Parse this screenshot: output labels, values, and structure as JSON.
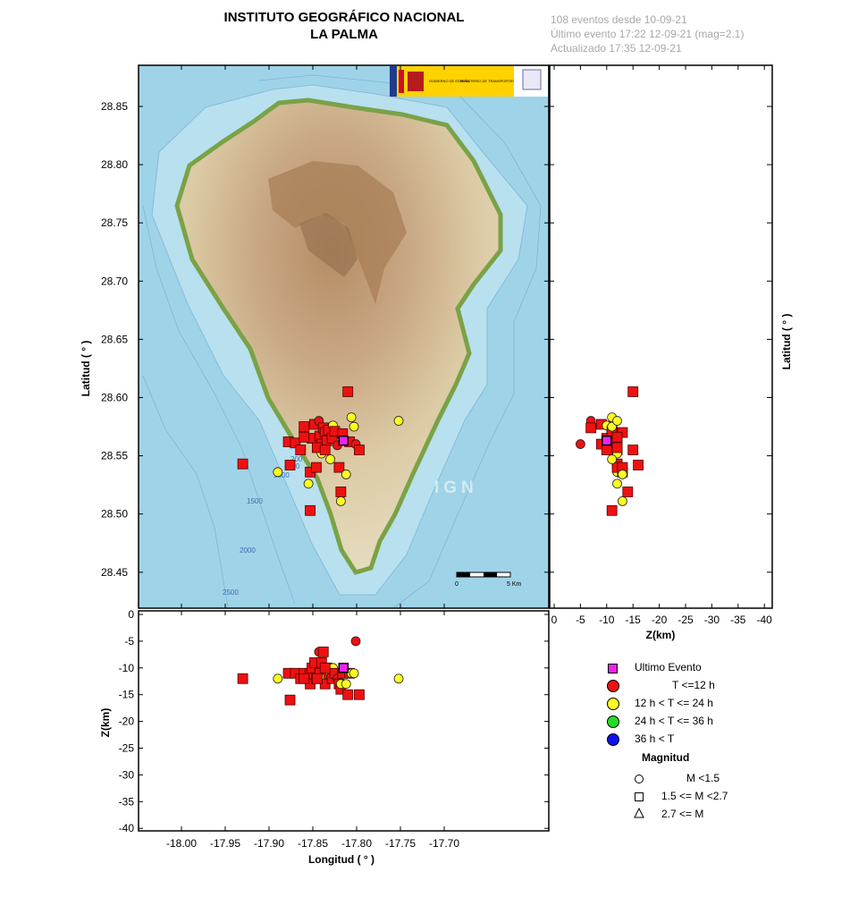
{
  "header": {
    "title_line1": "INSTITUTO GEOGRÁFICO NACIONAL",
    "title_line2": "LA PALMA",
    "info_events": "108 eventos desde 10-09-21",
    "info_last": "Último evento 17:22 12-09-21  (mag=2.1)",
    "info_updated": "Actualizado   17:35  12-09-21"
  },
  "map": {
    "lat_ticks": [
      "28.85",
      "28.80",
      "28.75",
      "28.70",
      "28.65",
      "28.60",
      "28.55",
      "28.50",
      "28.45"
    ],
    "lat_label": "Latitud ( ° )",
    "lon_ticks": [
      "-18.00",
      "-17.95",
      "-17.90",
      "-17.85",
      "-17.80",
      "-17.75",
      "-17.70"
    ],
    "lon_label": "Longitud ( ° )",
    "bathy_labels": [
      "200",
      "500",
      "1000",
      "1500",
      "2000",
      "2500"
    ],
    "scale_zero": "0",
    "scale_end": "5 Km",
    "watermark": "IGN",
    "sea_color": "#9fd3e8",
    "logo_text_left": "GOBIERNO DE ESPAÑA",
    "logo_text_right": "MINISTERIO DE TRANSPORTES, MOVILIDAD Y AGENDA URBANA"
  },
  "depth_lat_panel": {
    "z_ticks": [
      "0",
      "-5",
      "-10",
      "-15",
      "-20",
      "-25",
      "-30",
      "-35",
      "-40"
    ],
    "z_label": "Z(km)",
    "lat_label": "Latitud ( ° )"
  },
  "lon_depth_panel": {
    "z_ticks": [
      "0",
      "-5",
      "-10",
      "-15",
      "-20",
      "-25",
      "-30",
      "-35",
      "-40"
    ],
    "z_label": "Z(km)"
  },
  "legend": {
    "items": [
      {
        "label": "Ultimo Evento",
        "color": "#ee22ee",
        "shape": "square"
      },
      {
        "label": "T <=12 h",
        "color": "#ee1111",
        "shape": "circle"
      },
      {
        "label": "12 h  < T <= 24 h",
        "color": "#ffff22",
        "shape": "circle"
      },
      {
        "label": "24 h  < T <= 36 h",
        "color": "#22dd22",
        "shape": "circle"
      },
      {
        "label": "36 h <  T",
        "color": "#1111ee",
        "shape": "circle"
      }
    ],
    "magnitude_title": "Magnitud",
    "magnitudes": [
      {
        "label": "M <1.5",
        "shape": "circle"
      },
      {
        "label": "1.5 <= M <2.7",
        "shape": "square"
      },
      {
        "label": "2.7 <= M",
        "shape": "triangle"
      }
    ]
  },
  "chart_data": {
    "type": "scatter",
    "events": [
      {
        "lon": -17.93,
        "lat": 28.543,
        "z": -12,
        "color": "red",
        "shape": "square"
      },
      {
        "lon": -17.89,
        "lat": 28.536,
        "z": -12,
        "color": "yellow",
        "shape": "circle"
      },
      {
        "lon": -17.876,
        "lat": 28.542,
        "z": -16,
        "color": "red",
        "shape": "square"
      },
      {
        "lon": -17.878,
        "lat": 28.562,
        "z": -11,
        "color": "red",
        "shape": "square"
      },
      {
        "lon": -17.87,
        "lat": 28.561,
        "z": -11,
        "color": "red",
        "shape": "square"
      },
      {
        "lon": -17.864,
        "lat": 28.555,
        "z": -12,
        "color": "red",
        "shape": "square"
      },
      {
        "lon": -17.86,
        "lat": 28.575,
        "z": -11,
        "color": "red",
        "shape": "square"
      },
      {
        "lon": -17.855,
        "lat": 28.526,
        "z": -12,
        "color": "yellow",
        "shape": "circle"
      },
      {
        "lon": -17.853,
        "lat": 28.503,
        "z": -11,
        "color": "red",
        "shape": "square"
      },
      {
        "lon": -17.853,
        "lat": 28.536,
        "z": -13,
        "color": "red",
        "shape": "square"
      },
      {
        "lon": -17.851,
        "lat": 28.565,
        "z": -10,
        "color": "red",
        "shape": "square"
      },
      {
        "lon": -17.848,
        "lat": 28.577,
        "z": -9,
        "color": "red",
        "shape": "square"
      },
      {
        "lon": -17.846,
        "lat": 28.54,
        "z": -12,
        "color": "red",
        "shape": "square"
      },
      {
        "lon": -17.843,
        "lat": 28.58,
        "z": -7,
        "color": "red",
        "shape": "circle"
      },
      {
        "lon": -17.842,
        "lat": 28.567,
        "z": -11,
        "color": "red",
        "shape": "square"
      },
      {
        "lon": -17.84,
        "lat": 28.56,
        "z": -9,
        "color": "red",
        "shape": "square"
      },
      {
        "lon": -17.84,
        "lat": 28.552,
        "z": -12,
        "color": "yellow",
        "shape": "circle"
      },
      {
        "lon": -17.838,
        "lat": 28.574,
        "z": -7,
        "color": "red",
        "shape": "square"
      },
      {
        "lon": -17.836,
        "lat": 28.57,
        "z": -13,
        "color": "red",
        "shape": "square"
      },
      {
        "lon": -17.834,
        "lat": 28.563,
        "z": -10,
        "color": "red",
        "shape": "square"
      },
      {
        "lon": -17.832,
        "lat": 28.572,
        "z": -11,
        "color": "red",
        "shape": "square"
      },
      {
        "lon": -17.83,
        "lat": 28.547,
        "z": -11,
        "color": "yellow",
        "shape": "circle"
      },
      {
        "lon": -17.828,
        "lat": 28.565,
        "z": -12,
        "color": "red",
        "shape": "square"
      },
      {
        "lon": -17.827,
        "lat": 28.576,
        "z": -10,
        "color": "yellow",
        "shape": "circle"
      },
      {
        "lon": -17.825,
        "lat": 28.571,
        "z": -11,
        "color": "red",
        "shape": "square"
      },
      {
        "lon": -17.822,
        "lat": 28.559,
        "z": -12,
        "color": "red",
        "shape": "circle"
      },
      {
        "lon": -17.82,
        "lat": 28.54,
        "z": -13,
        "color": "red",
        "shape": "square"
      },
      {
        "lon": -17.818,
        "lat": 28.519,
        "z": -14,
        "color": "red",
        "shape": "square"
      },
      {
        "lon": -17.818,
        "lat": 28.511,
        "z": -13,
        "color": "yellow",
        "shape": "circle"
      },
      {
        "lon": -17.816,
        "lat": 28.569,
        "z": -11,
        "color": "red",
        "shape": "square"
      },
      {
        "lon": -17.812,
        "lat": 28.534,
        "z": -13,
        "color": "yellow",
        "shape": "circle"
      },
      {
        "lon": -17.81,
        "lat": 28.605,
        "z": -15,
        "color": "red",
        "shape": "square"
      },
      {
        "lon": -17.808,
        "lat": 28.562,
        "z": -11,
        "color": "red",
        "shape": "square"
      },
      {
        "lon": -17.806,
        "lat": 28.583,
        "z": -11,
        "color": "yellow",
        "shape": "circle"
      },
      {
        "lon": -17.803,
        "lat": 28.575,
        "z": -11,
        "color": "yellow",
        "shape": "circle"
      },
      {
        "lon": -17.801,
        "lat": 28.56,
        "z": -5,
        "color": "red",
        "shape": "circle"
      },
      {
        "lon": -17.797,
        "lat": 28.555,
        "z": -15,
        "color": "red",
        "shape": "square"
      },
      {
        "lon": -17.752,
        "lat": 28.58,
        "z": -12,
        "color": "yellow",
        "shape": "circle"
      },
      {
        "lon": -17.845,
        "lat": 28.557,
        "z": -12,
        "color": "red",
        "shape": "square"
      },
      {
        "lon": -17.836,
        "lat": 28.555,
        "z": -10,
        "color": "red",
        "shape": "square"
      },
      {
        "lon": -17.86,
        "lat": 28.566,
        "z": -12,
        "color": "red",
        "shape": "square"
      },
      {
        "lon": -17.815,
        "lat": 28.563,
        "z": -10,
        "color": "magenta",
        "shape": "square"
      }
    ]
  }
}
